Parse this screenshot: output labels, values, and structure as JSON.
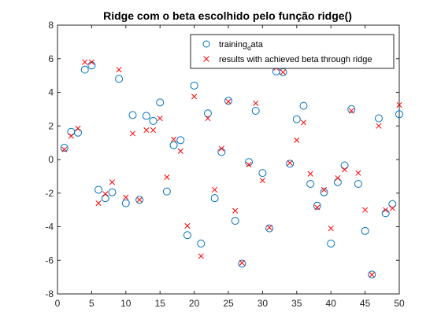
{
  "chart_data": {
    "type": "scatter",
    "title": "Ridge com o beta escolhido pelo função ridge()",
    "xlabel": "",
    "ylabel": "",
    "xlim": [
      0,
      50
    ],
    "ylim": [
      -8,
      8
    ],
    "xticks": [
      "0",
      "5",
      "10",
      "15",
      "20",
      "25",
      "30",
      "35",
      "40",
      "45",
      "50"
    ],
    "yticks": [
      "-8",
      "-6",
      "-4",
      "-2",
      "0",
      "2",
      "4",
      "6",
      "8"
    ],
    "grid": false,
    "legend": {
      "placement": "top-right"
    },
    "series": [
      {
        "name": "training_data",
        "legend_main": "training",
        "legend_sub": "d",
        "legend_tail": "ata",
        "marker": "circle",
        "color": "#0072BD",
        "x": [
          1,
          2,
          3,
          4,
          5,
          6,
          7,
          8,
          9,
          10,
          11,
          12,
          13,
          14,
          15,
          16,
          17,
          18,
          19,
          20,
          21,
          22,
          23,
          24,
          25,
          26,
          27,
          28,
          29,
          30,
          31,
          32,
          33,
          34,
          35,
          36,
          37,
          38,
          39,
          40,
          41,
          42,
          43,
          44,
          45,
          46,
          47,
          48,
          49,
          50
        ],
        "y": [
          0.7,
          1.65,
          1.6,
          5.35,
          5.6,
          -1.8,
          -2.3,
          -1.95,
          4.8,
          -2.6,
          2.65,
          -2.4,
          2.6,
          2.3,
          3.4,
          -1.9,
          0.85,
          1.15,
          -4.5,
          4.4,
          -5.0,
          2.75,
          -2.3,
          0.45,
          3.5,
          -3.65,
          -6.2,
          -0.15,
          2.9,
          -0.8,
          -4.1,
          5.25,
          5.2,
          -0.25,
          2.4,
          3.2,
          -1.45,
          -2.75,
          -1.95,
          -5.0,
          -1.35,
          -0.35,
          3.0,
          -1.45,
          -4.25,
          -6.85,
          2.45,
          -3.2,
          -2.65,
          2.7
        ]
      },
      {
        "name": "results with achieved beta through ridge",
        "marker": "x",
        "color": "#FF0000",
        "x": [
          1,
          2,
          3,
          4,
          5,
          6,
          7,
          8,
          9,
          10,
          11,
          12,
          13,
          14,
          15,
          16,
          17,
          18,
          19,
          20,
          21,
          22,
          23,
          24,
          25,
          26,
          27,
          28,
          29,
          30,
          31,
          32,
          33,
          34,
          35,
          36,
          37,
          38,
          39,
          40,
          41,
          42,
          43,
          44,
          45,
          46,
          47,
          48,
          49,
          50
        ],
        "y": [
          0.6,
          1.4,
          1.85,
          5.8,
          5.8,
          -2.6,
          -2.05,
          -1.35,
          5.35,
          -2.25,
          1.55,
          -2.4,
          1.75,
          1.75,
          2.45,
          -1.05,
          1.2,
          0.5,
          -3.95,
          3.75,
          -5.75,
          2.45,
          -1.8,
          0.65,
          3.45,
          -3.05,
          -6.15,
          -0.3,
          3.35,
          -1.25,
          -4.05,
          5.45,
          5.2,
          -0.2,
          1.15,
          2.2,
          -0.85,
          -2.85,
          -1.8,
          -4.1,
          -1.1,
          -0.6,
          2.9,
          -0.8,
          -3.0,
          -6.85,
          2.0,
          -3.0,
          -2.9,
          3.25
        ]
      }
    ]
  }
}
